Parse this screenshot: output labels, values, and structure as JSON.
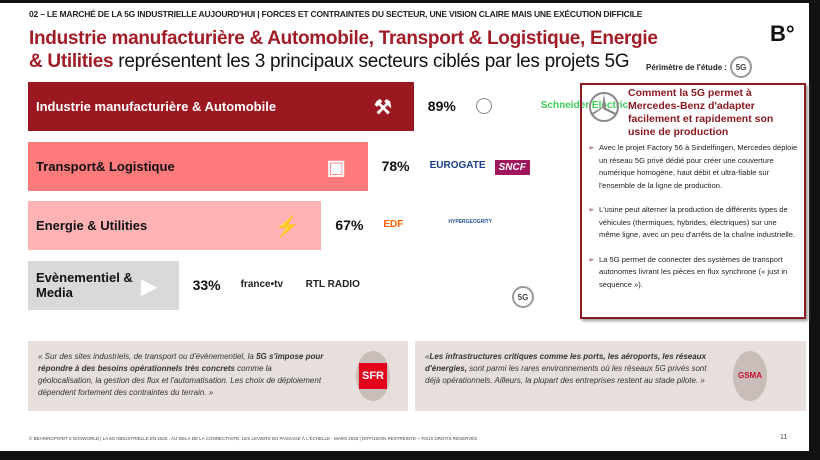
{
  "header": {
    "kicker": "02 – LE MARCHÉ DE LA 5G INDUSTRIELLE AUJOURD'HUI | FORCES ET CONTRAINTES DU SECTEUR, UNE VISION CLAIRE MAIS UNE EXÉCUTION DIFFICILE",
    "title_highlight": "Industrie manufacturière & Automobile, Transport & Logistique, Energie & Utilities",
    "title_rest": " représentent les 3 principaux secteurs ciblés par les projets 5G",
    "logo": "B°",
    "perimeter_label": "Périmètre de l'étude :",
    "badge": "5G"
  },
  "chart_data": {
    "type": "bar",
    "orientation": "horizontal",
    "categories": [
      "Industrie manufacturière & Automobile",
      "Transport& Logistique",
      "Energie & Utilities",
      "Evènementiel & Media"
    ],
    "values": [
      89,
      78,
      67,
      33
    ],
    "value_labels": [
      "89%",
      "78%",
      "67%",
      "33%"
    ],
    "colors": [
      "#9b1820",
      "#ff7a7a",
      "#ffb3b5",
      "#d9d9d9"
    ],
    "icons": [
      "robot-arm-icon",
      "box-icon",
      "battery-icon",
      "camera-icon"
    ],
    "brands": [
      [
        "Mercedes",
        "Schneider Electric"
      ],
      [
        "EUROGATE",
        "SNCF"
      ],
      [
        "EDF",
        "HYPERGEOGRITY"
      ],
      [
        "france•tv",
        "RTL RADIO"
      ]
    ]
  },
  "case": {
    "title": "Comment la 5G permet à Mercedes-Benz  d'adapter facilement et rapidement son usine de production",
    "bullets": [
      "Avec le projet Factory 56 à Sindelfingen, Mercedes déploie un réseau 5G privé dédié pour créer une couverture numérique homogène, haut débit et ultra-fiable sur l'ensemble de la ligne de production.",
      "L'usine peut alterner la production de différents types de véhicules (thermiques, hybrides, électriques) sur une même ligne, avec un peu d'arrêts de la chaîne industrielle.",
      "La 5G permet de connecter des systèmes de transport autonomes livrant les pièces en flux synchrone (« just in sequence »)."
    ]
  },
  "quotes": [
    {
      "pre": "« Sur des sites industriels, de transport ou d'évènementiel, la ",
      "bold": "5G s'impose pour répondre à des besoins opérationnels très concrets",
      "post": " comme la géolocalisation, la gestion des flux et l'automatisation. Les choix de déploiement dépendent fortement des contraintes du terrain. »",
      "logo": "SFR"
    },
    {
      "pre": "«",
      "bold": "Les infrastructures critiques comme les ports, les aéroports, les réseaux d'énergies,",
      "post": " sont parmi les rares environnements où les réseaux 5G privés sont déjà opérationnels. Ailleurs, la plupart des entreprises restent au stade pilote. »",
      "logo": "GSMA"
    }
  ],
  "footer": {
    "text": "© BEARINGPOINT X DIGIWORLD | LA 5G INDUSTRIELLE EN 2026 : AU-DELÀ DE LA CONNECTIVITÉ, LES LEVIERS DU PASSAGE À L'ÉCHELLE - MARS 2026 | DIFFUSION RESTREINTE – TOUS DROITS RÉSERVÉS",
    "page": "11"
  }
}
